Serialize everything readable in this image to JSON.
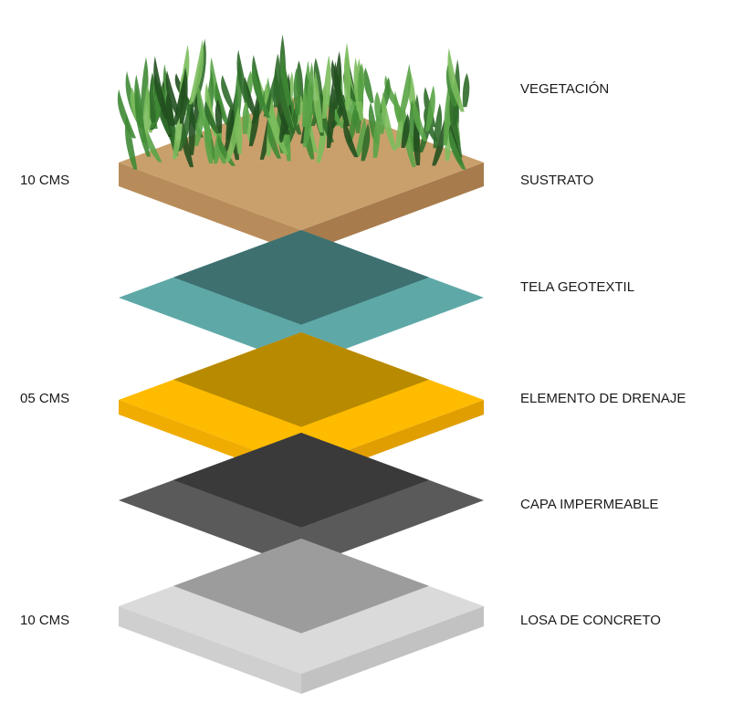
{
  "layers": [
    {
      "label": "VEGETACIÓN"
    },
    {
      "label": "SUSTRATO",
      "thickness": "10 CMS"
    },
    {
      "label": "TELA GEOTEXTIL"
    },
    {
      "label": "ELEMENTO DE DRENAJE",
      "thickness": "05 CMS"
    },
    {
      "label": "CAPA IMPERMEABLE"
    },
    {
      "label": "LOSA DE CONCRETO",
      "thickness": "10 CMS"
    }
  ]
}
